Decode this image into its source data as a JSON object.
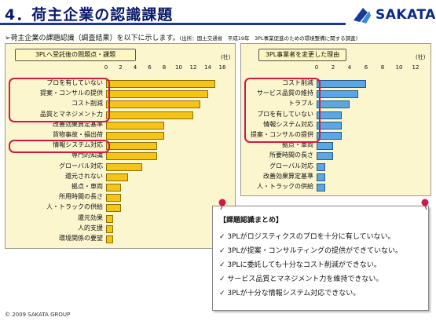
{
  "title": "4．荷主企業の認識課題",
  "brand": "SAKATA",
  "intro": {
    "text": "荷主企業の課題認識（調査結果）を以下に示します。",
    "source": "(出所：国土交通省　平成19年　3PL事業促進のための環境整備に関する調査)"
  },
  "footer": "© 2009 SAKATA GROUP",
  "summary": {
    "heading": "【課題認識まとめ】",
    "items": [
      "3PLがロジスティクスのプロを十分に有していない。",
      "3PLが提案・コンサルティングの提供ができていない。",
      "3PLに委託しても十分なコスト削減ができない。",
      "サービス品質とマネジメント力を維持できない。",
      "3PLが十分な情報システム対応できない。"
    ]
  },
  "chart_data": [
    {
      "type": "bar",
      "orientation": "horizontal",
      "title": "3PLへ受託後の問題点・課題",
      "unit": "(社)",
      "xlim": [
        0,
        16
      ],
      "ticks": [
        0,
        2,
        4,
        6,
        8,
        10,
        12,
        14,
        16
      ],
      "color": "#f6c417",
      "categories": [
        "プロを有していない",
        "提案・コンサルの提供",
        "コスト削減",
        "品質とマネジメント力",
        "改善効果算定基準",
        "貨物事故・損出荷",
        "情報システム対応",
        "専門的知識",
        "グローバル対応",
        "還元されない",
        "拠点・車両",
        "所用時間の長さ",
        "人・トラックの供給",
        "還元効果",
        "人的支援",
        "環境関係の要望"
      ],
      "values": [
        15,
        14,
        13,
        12,
        8,
        8,
        7,
        7,
        5,
        3,
        2,
        2,
        2,
        1,
        1,
        1
      ],
      "highlight_groups": [
        [
          0,
          3
        ],
        [
          6,
          6
        ]
      ]
    },
    {
      "type": "bar",
      "orientation": "horizontal",
      "title": "3PL事業者を変更した理由",
      "unit": "(社)",
      "xlim": [
        0,
        12
      ],
      "ticks": [
        0,
        2,
        4,
        6,
        8,
        10,
        12
      ],
      "color": "#5aa7e4",
      "categories": [
        "コスト削減",
        "サービス品質の維持",
        "トラブル",
        "プロを有していない",
        "情報システム対応",
        "提案・コンサルの提供",
        "拠点・車両",
        "所要時間の長さ",
        "グローバル対応",
        "改善効果算定基準",
        "人・トラックの供給"
      ],
      "values": [
        6,
        5,
        4,
        3,
        3,
        3,
        2,
        2,
        1,
        1,
        1
      ],
      "highlight_groups": [
        [
          0,
          5
        ]
      ]
    }
  ]
}
